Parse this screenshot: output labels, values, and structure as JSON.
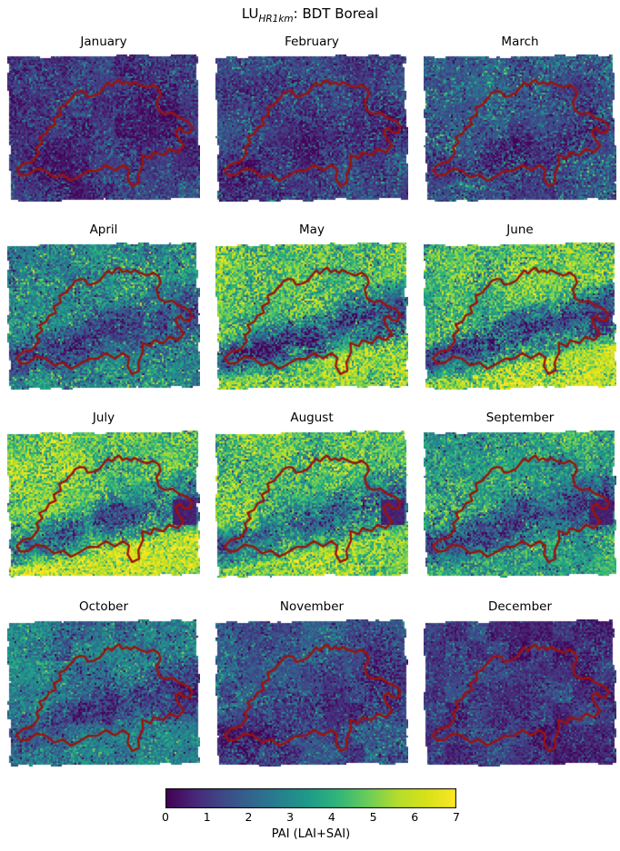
{
  "figure": {
    "title": {
      "prefix": "LU",
      "subscript": "HR1km",
      "suffix": ": BDT Boreal"
    },
    "months": [
      "January",
      "February",
      "March",
      "April",
      "May",
      "June",
      "July",
      "August",
      "September",
      "October",
      "November",
      "December"
    ],
    "colorbar": {
      "label": "PAI (LAI+SAI)",
      "ticks": [
        "0",
        "1",
        "2",
        "3",
        "4",
        "5",
        "6",
        "7"
      ],
      "min": 0,
      "max": 7,
      "colormap": "viridis"
    }
  },
  "chart_data": {
    "type": "heatmap",
    "title": "LU_HR1km: BDT Boreal",
    "description": "12 small-multiple monthly raster maps (3 columns x 4 rows) of plant area index over the Swiss region, viridis colormap 0-7, dark-red country border overlaid on each map",
    "categories": [
      "January",
      "February",
      "March",
      "April",
      "May",
      "June",
      "July",
      "August",
      "September",
      "October",
      "November",
      "December"
    ],
    "value_range": [
      0,
      7
    ],
    "colorbar_label": "PAI (LAI+SAI)",
    "colorbar_ticks": [
      0,
      1,
      2,
      3,
      4,
      5,
      6,
      7
    ],
    "legend_position": "bottom",
    "estimated_monthly_pai": {
      "lowland": [
        1.0,
        1.2,
        1.6,
        2.9,
        4.7,
        4.5,
        4.8,
        4.5,
        3.5,
        2.5,
        1.4,
        1.0
      ],
      "alpine": [
        0.7,
        0.7,
        0.8,
        1.0,
        1.3,
        1.5,
        1.8,
        1.7,
        1.4,
        1.0,
        0.8,
        0.7
      ]
    },
    "render_hints": {
      "border_color": "#9c130b",
      "border_width": 2.4,
      "noise_amp": [
        0.9,
        1.0,
        1.2,
        1.6,
        2.0,
        2.0,
        1.9,
        1.9,
        1.7,
        1.3,
        1.0,
        0.8
      ],
      "lowfreq_amp": [
        0.45,
        0.5,
        0.55,
        0.7,
        0.8,
        0.8,
        0.75,
        0.75,
        0.7,
        0.6,
        0.5,
        0.45
      ],
      "block_amp": [
        0.28,
        0.25,
        0.22,
        0.2,
        0.22,
        0.2,
        0.2,
        0.2,
        0.25,
        0.45,
        0.35,
        0.5
      ],
      "speckle_prob": [
        0.1,
        0.12,
        0.16,
        0.1,
        0.06,
        0.05,
        0.05,
        0.05,
        0.06,
        0.1,
        0.12,
        0.09
      ],
      "speckle_boost": [
        1.5,
        1.6,
        1.7,
        1.5,
        1.3,
        1.3,
        1.2,
        1.2,
        1.2,
        1.2,
        1.4,
        1.4
      ],
      "dark_speckle_prob": [
        0.02,
        0.02,
        0.03,
        0.05,
        0.07,
        0.07,
        0.07,
        0.07,
        0.06,
        0.05,
        0.03,
        0.02
      ],
      "south_boost": [
        1.0,
        1.0,
        1.0,
        1.05,
        1.12,
        1.22,
        1.18,
        1.15,
        1.05,
        1.0,
        1.0,
        1.0
      ],
      "east_patch": [
        0,
        0,
        0,
        0,
        0.3,
        0.6,
        1.0,
        1.0,
        1.0,
        0.3,
        0,
        0
      ]
    },
    "border_polygon": [
      [
        0.337,
        0.292
      ],
      [
        0.352,
        0.262
      ],
      [
        0.38,
        0.248
      ],
      [
        0.402,
        0.252
      ],
      [
        0.418,
        0.288
      ],
      [
        0.448,
        0.28
      ],
      [
        0.478,
        0.262
      ],
      [
        0.5,
        0.225
      ],
      [
        0.522,
        0.19
      ],
      [
        0.543,
        0.212
      ],
      [
        0.56,
        0.186
      ],
      [
        0.58,
        0.17
      ],
      [
        0.598,
        0.202
      ],
      [
        0.62,
        0.188
      ],
      [
        0.642,
        0.206
      ],
      [
        0.658,
        0.186
      ],
      [
        0.688,
        0.206
      ],
      [
        0.726,
        0.224
      ],
      [
        0.758,
        0.205
      ],
      [
        0.786,
        0.232
      ],
      [
        0.796,
        0.272
      ],
      [
        0.774,
        0.318
      ],
      [
        0.786,
        0.38
      ],
      [
        0.818,
        0.405
      ],
      [
        0.856,
        0.395
      ],
      [
        0.888,
        0.428
      ],
      [
        0.938,
        0.455
      ],
      [
        0.96,
        0.492
      ],
      [
        0.946,
        0.532
      ],
      [
        0.912,
        0.526
      ],
      [
        0.9,
        0.496
      ],
      [
        0.872,
        0.52
      ],
      [
        0.886,
        0.566
      ],
      [
        0.916,
        0.62
      ],
      [
        0.884,
        0.664
      ],
      [
        0.84,
        0.64
      ],
      [
        0.81,
        0.685
      ],
      [
        0.76,
        0.664
      ],
      [
        0.744,
        0.706
      ],
      [
        0.7,
        0.682
      ],
      [
        0.704,
        0.746
      ],
      [
        0.68,
        0.815
      ],
      [
        0.684,
        0.872
      ],
      [
        0.648,
        0.894
      ],
      [
        0.624,
        0.84
      ],
      [
        0.632,
        0.782
      ],
      [
        0.6,
        0.752
      ],
      [
        0.558,
        0.788
      ],
      [
        0.512,
        0.752
      ],
      [
        0.468,
        0.79
      ],
      [
        0.42,
        0.792
      ],
      [
        0.372,
        0.83
      ],
      [
        0.33,
        0.858
      ],
      [
        0.29,
        0.816
      ],
      [
        0.242,
        0.836
      ],
      [
        0.198,
        0.788
      ],
      [
        0.15,
        0.776
      ],
      [
        0.108,
        0.818
      ],
      [
        0.07,
        0.824
      ],
      [
        0.048,
        0.786
      ],
      [
        0.08,
        0.744
      ],
      [
        0.128,
        0.73
      ],
      [
        0.162,
        0.672
      ],
      [
        0.152,
        0.632
      ],
      [
        0.182,
        0.598
      ],
      [
        0.166,
        0.56
      ],
      [
        0.2,
        0.54
      ],
      [
        0.218,
        0.496
      ],
      [
        0.252,
        0.478
      ],
      [
        0.24,
        0.436
      ],
      [
        0.278,
        0.408
      ],
      [
        0.27,
        0.362
      ],
      [
        0.306,
        0.34
      ],
      [
        0.316,
        0.318
      ]
    ]
  }
}
